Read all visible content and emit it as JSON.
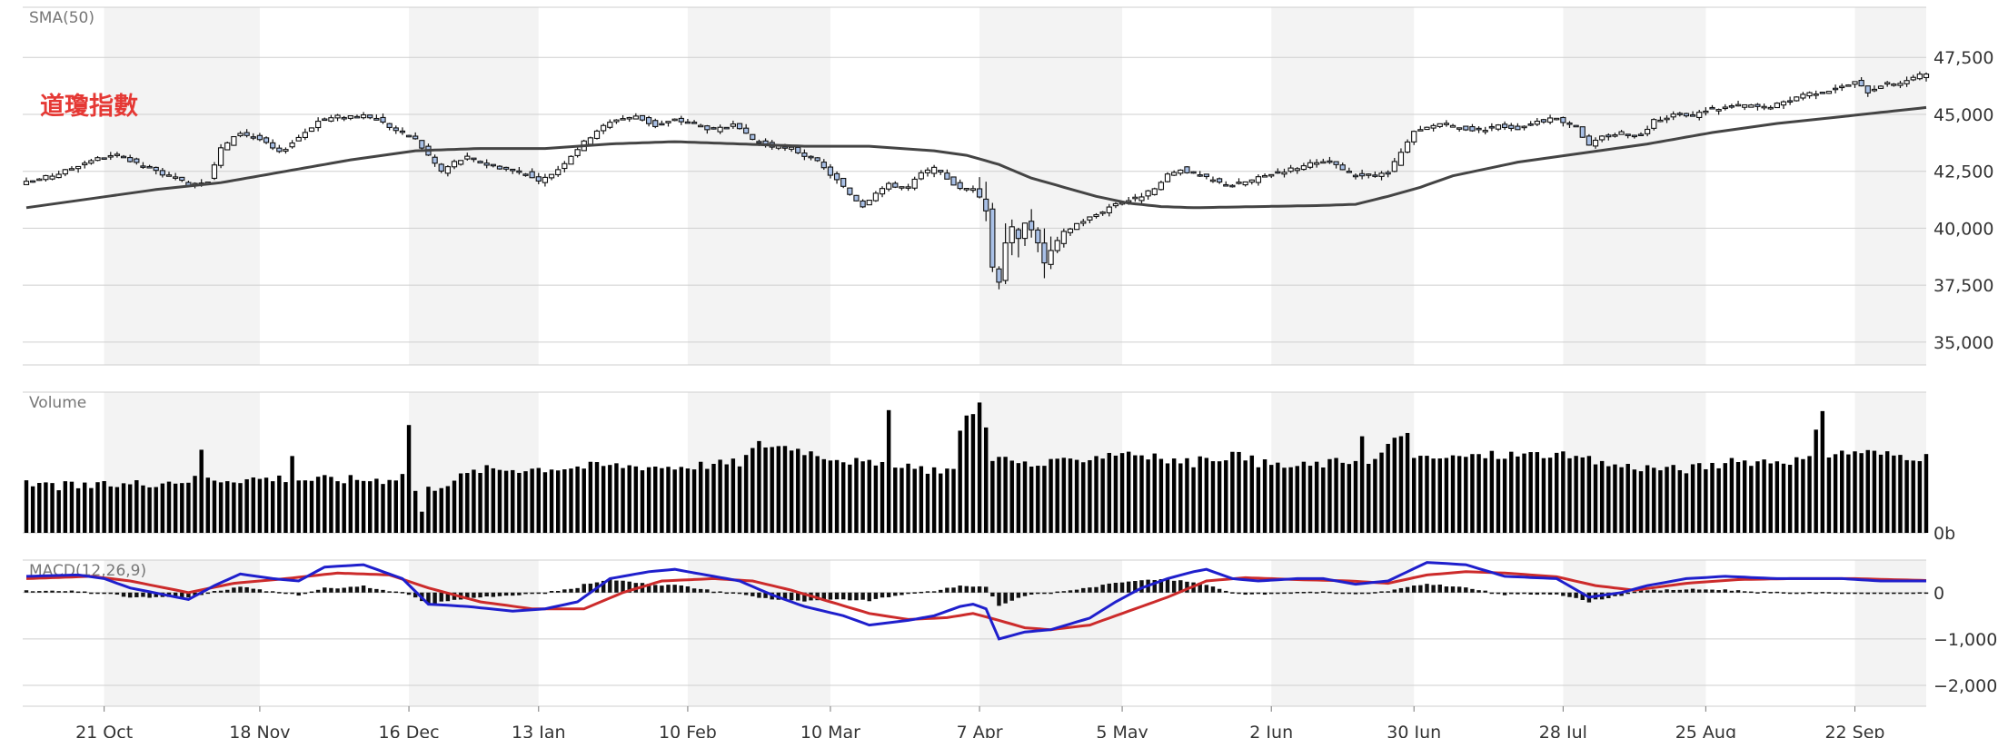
{
  "page": {
    "title": "道瓊指數"
  },
  "colors": {
    "band": "#f3f3f3",
    "grid": "#cfcfcf",
    "candle_up_fill": "#ffffff",
    "candle_down_fill": "#a9c0e6",
    "candle_stroke": "#111111",
    "sma": "#444444",
    "volume": "#000000",
    "macd_line": "#1f1fcc",
    "signal_line": "#cc2b2b",
    "histogram": "#111111",
    "title": "#e53935"
  },
  "chart_data": [
    {
      "type": "candlestick",
      "pane": "price",
      "label": "SMA(50)",
      "title": "道瓊指數",
      "ylim": [
        34000,
        49700
      ],
      "yticks": [
        {
          "value": 35000,
          "label": "35,000"
        },
        {
          "value": 37500,
          "label": "37,500"
        },
        {
          "value": 40000,
          "label": "40,000"
        },
        {
          "value": 42500,
          "label": "42,500"
        },
        {
          "value": 45000,
          "label": "45,000"
        },
        {
          "value": 47500,
          "label": "47,500"
        }
      ],
      "close_anchors": [
        [
          0,
          42000
        ],
        [
          5,
          42400
        ],
        [
          10,
          43000
        ],
        [
          14,
          43200
        ],
        [
          18,
          42700
        ],
        [
          21,
          42400
        ],
        [
          25,
          41950
        ],
        [
          28,
          42100
        ],
        [
          30,
          43500
        ],
        [
          33,
          44200
        ],
        [
          36,
          43900
        ],
        [
          39,
          43300
        ],
        [
          42,
          44000
        ],
        [
          45,
          44700
        ],
        [
          48,
          44900
        ],
        [
          51,
          44950
        ],
        [
          54,
          44800
        ],
        [
          57,
          44300
        ],
        [
          60,
          43900
        ],
        [
          62,
          43200
        ],
        [
          64,
          42500
        ],
        [
          66,
          42900
        ],
        [
          68,
          43100
        ],
        [
          71,
          42800
        ],
        [
          74,
          42600
        ],
        [
          77,
          42400
        ],
        [
          79,
          42000
        ],
        [
          82,
          42600
        ],
        [
          85,
          43500
        ],
        [
          88,
          44300
        ],
        [
          91,
          44800
        ],
        [
          94,
          44900
        ],
        [
          97,
          44500
        ],
        [
          100,
          44750
        ],
        [
          103,
          44600
        ],
        [
          106,
          44300
        ],
        [
          109,
          44500
        ],
        [
          112,
          43900
        ],
        [
          115,
          43600
        ],
        [
          118,
          43500
        ],
        [
          120,
          43200
        ],
        [
          122,
          42900
        ],
        [
          125,
          42100
        ],
        [
          127,
          41500
        ],
        [
          129,
          41000
        ],
        [
          131,
          41600
        ],
        [
          133,
          41900
        ],
        [
          136,
          41800
        ],
        [
          138,
          42400
        ],
        [
          140,
          42600
        ],
        [
          142,
          42200
        ],
        [
          144,
          41700
        ],
        [
          146,
          41800
        ],
        [
          148,
          40800
        ],
        [
          149,
          38300
        ],
        [
          150,
          37700
        ],
        [
          151,
          39400
        ],
        [
          152,
          40000
        ],
        [
          153,
          39500
        ],
        [
          154,
          40300
        ],
        [
          155,
          40000
        ],
        [
          156,
          39300
        ],
        [
          157,
          38500
        ],
        [
          158,
          39000
        ],
        [
          160,
          39800
        ],
        [
          162,
          40200
        ],
        [
          165,
          40600
        ],
        [
          168,
          41100
        ],
        [
          171,
          41300
        ],
        [
          174,
          41700
        ],
        [
          176,
          42300
        ],
        [
          178,
          42600
        ],
        [
          181,
          42300
        ],
        [
          184,
          42000
        ],
        [
          186,
          41900
        ],
        [
          189,
          42100
        ],
        [
          192,
          42400
        ],
        [
          195,
          42600
        ],
        [
          198,
          42800
        ],
        [
          201,
          42900
        ],
        [
          204,
          42400
        ],
        [
          207,
          42300
        ],
        [
          210,
          42400
        ],
        [
          212,
          43300
        ],
        [
          214,
          44200
        ],
        [
          216,
          44400
        ],
        [
          218,
          44600
        ],
        [
          221,
          44400
        ],
        [
          224,
          44300
        ],
        [
          227,
          44500
        ],
        [
          230,
          44400
        ],
        [
          233,
          44700
        ],
        [
          236,
          44800
        ],
        [
          239,
          44500
        ],
        [
          241,
          43600
        ],
        [
          243,
          44000
        ],
        [
          246,
          44200
        ],
        [
          249,
          44100
        ],
        [
          251,
          44700
        ],
        [
          254,
          45000
        ],
        [
          257,
          44900
        ],
        [
          259,
          45200
        ],
        [
          262,
          45300
        ],
        [
          265,
          45400
        ],
        [
          268,
          45300
        ],
        [
          271,
          45500
        ],
        [
          274,
          45900
        ],
        [
          277,
          46000
        ],
        [
          280,
          46200
        ],
        [
          282,
          46400
        ],
        [
          284,
          46000
        ],
        [
          286,
          46300
        ],
        [
          289,
          46400
        ],
        [
          291,
          46600
        ],
        [
          293,
          46800
        ]
      ],
      "sma_anchors": [
        [
          0,
          40900
        ],
        [
          10,
          41300
        ],
        [
          20,
          41700
        ],
        [
          30,
          42000
        ],
        [
          40,
          42500
        ],
        [
          50,
          43000
        ],
        [
          60,
          43400
        ],
        [
          70,
          43500
        ],
        [
          80,
          43500
        ],
        [
          90,
          43700
        ],
        [
          100,
          43800
        ],
        [
          110,
          43700
        ],
        [
          120,
          43600
        ],
        [
          130,
          43600
        ],
        [
          140,
          43400
        ],
        [
          145,
          43200
        ],
        [
          150,
          42800
        ],
        [
          155,
          42200
        ],
        [
          160,
          41800
        ],
        [
          165,
          41400
        ],
        [
          170,
          41100
        ],
        [
          175,
          40950
        ],
        [
          180,
          40900
        ],
        [
          190,
          40950
        ],
        [
          200,
          41000
        ],
        [
          205,
          41050
        ],
        [
          210,
          41400
        ],
        [
          215,
          41800
        ],
        [
          220,
          42300
        ],
        [
          230,
          42900
        ],
        [
          240,
          43300
        ],
        [
          250,
          43700
        ],
        [
          260,
          44200
        ],
        [
          270,
          44600
        ],
        [
          280,
          44900
        ],
        [
          293,
          45300
        ]
      ]
    },
    {
      "type": "bar",
      "pane": "volume",
      "label": "Volume",
      "ylim": [
        0,
        1000
      ],
      "yticks": [
        {
          "value": 0,
          "label": "0b"
        }
      ],
      "value_anchors": [
        [
          0,
          340
        ],
        [
          10,
          330
        ],
        [
          20,
          360
        ],
        [
          26,
          380
        ],
        [
          27,
          600
        ],
        [
          28,
          380
        ],
        [
          40,
          390
        ],
        [
          41,
          560
        ],
        [
          42,
          380
        ],
        [
          55,
          380
        ],
        [
          58,
          410
        ],
        [
          59,
          780
        ],
        [
          60,
          300
        ],
        [
          61,
          150
        ],
        [
          62,
          310
        ],
        [
          70,
          450
        ],
        [
          80,
          460
        ],
        [
          90,
          480
        ],
        [
          100,
          470
        ],
        [
          110,
          500
        ],
        [
          113,
          630
        ],
        [
          118,
          610
        ],
        [
          122,
          560
        ],
        [
          132,
          470
        ],
        [
          133,
          900
        ],
        [
          134,
          460
        ],
        [
          143,
          450
        ],
        [
          144,
          700
        ],
        [
          145,
          860
        ],
        [
          146,
          840
        ],
        [
          147,
          920
        ],
        [
          148,
          780
        ],
        [
          149,
          540
        ],
        [
          155,
          480
        ],
        [
          160,
          500
        ],
        [
          165,
          550
        ],
        [
          170,
          580
        ],
        [
          175,
          520
        ],
        [
          180,
          500
        ],
        [
          186,
          560
        ],
        [
          190,
          500
        ],
        [
          195,
          470
        ],
        [
          198,
          480
        ],
        [
          205,
          520
        ],
        [
          206,
          720
        ],
        [
          207,
          480
        ],
        [
          213,
          740
        ],
        [
          214,
          520
        ],
        [
          225,
          550
        ],
        [
          235,
          560
        ],
        [
          245,
          480
        ],
        [
          255,
          450
        ],
        [
          265,
          510
        ],
        [
          275,
          520
        ],
        [
          277,
          880
        ],
        [
          278,
          560
        ],
        [
          283,
          580
        ],
        [
          286,
          560
        ],
        [
          293,
          540
        ]
      ]
    },
    {
      "type": "line",
      "pane": "macd",
      "label": "MACD(12,26,9)",
      "ylim": [
        -2450,
        700
      ],
      "yticks": [
        {
          "value": 0,
          "label": "0"
        },
        {
          "value": -1000,
          "label": "−1,000"
        },
        {
          "value": -2000,
          "label": "−2,000"
        }
      ],
      "macd_anchors": [
        [
          0,
          350
        ],
        [
          8,
          380
        ],
        [
          12,
          300
        ],
        [
          16,
          100
        ],
        [
          25,
          -150
        ],
        [
          29,
          150
        ],
        [
          33,
          400
        ],
        [
          38,
          300
        ],
        [
          42,
          250
        ],
        [
          46,
          550
        ],
        [
          52,
          600
        ],
        [
          58,
          300
        ],
        [
          62,
          -250
        ],
        [
          68,
          -300
        ],
        [
          75,
          -400
        ],
        [
          80,
          -350
        ],
        [
          85,
          -200
        ],
        [
          90,
          300
        ],
        [
          96,
          450
        ],
        [
          100,
          500
        ],
        [
          104,
          400
        ],
        [
          110,
          250
        ],
        [
          115,
          -50
        ],
        [
          120,
          -300
        ],
        [
          126,
          -500
        ],
        [
          130,
          -700
        ],
        [
          136,
          -600
        ],
        [
          140,
          -500
        ],
        [
          144,
          -300
        ],
        [
          146,
          -250
        ],
        [
          148,
          -350
        ],
        [
          150,
          -1000
        ],
        [
          154,
          -850
        ],
        [
          158,
          -800
        ],
        [
          164,
          -550
        ],
        [
          168,
          -200
        ],
        [
          172,
          100
        ],
        [
          176,
          300
        ],
        [
          180,
          450
        ],
        [
          182,
          500
        ],
        [
          186,
          300
        ],
        [
          190,
          250
        ],
        [
          196,
          300
        ],
        [
          200,
          300
        ],
        [
          205,
          180
        ],
        [
          210,
          250
        ],
        [
          216,
          650
        ],
        [
          222,
          600
        ],
        [
          228,
          350
        ],
        [
          236,
          300
        ],
        [
          241,
          -100
        ],
        [
          246,
          0
        ],
        [
          250,
          150
        ],
        [
          256,
          300
        ],
        [
          262,
          350
        ],
        [
          270,
          300
        ],
        [
          280,
          300
        ],
        [
          286,
          250
        ],
        [
          293,
          250
        ]
      ],
      "signal_anchors": [
        [
          0,
          300
        ],
        [
          10,
          350
        ],
        [
          16,
          250
        ],
        [
          25,
          0
        ],
        [
          32,
          200
        ],
        [
          40,
          300
        ],
        [
          48,
          420
        ],
        [
          56,
          380
        ],
        [
          62,
          100
        ],
        [
          70,
          -200
        ],
        [
          78,
          -350
        ],
        [
          86,
          -350
        ],
        [
          92,
          0
        ],
        [
          98,
          250
        ],
        [
          106,
          300
        ],
        [
          112,
          250
        ],
        [
          118,
          50
        ],
        [
          124,
          -200
        ],
        [
          130,
          -450
        ],
        [
          136,
          -580
        ],
        [
          142,
          -540
        ],
        [
          146,
          -450
        ],
        [
          150,
          -600
        ],
        [
          154,
          -760
        ],
        [
          158,
          -800
        ],
        [
          164,
          -700
        ],
        [
          170,
          -400
        ],
        [
          176,
          -100
        ],
        [
          182,
          250
        ],
        [
          188,
          320
        ],
        [
          196,
          280
        ],
        [
          204,
          250
        ],
        [
          210,
          200
        ],
        [
          216,
          380
        ],
        [
          222,
          450
        ],
        [
          228,
          420
        ],
        [
          236,
          340
        ],
        [
          242,
          150
        ],
        [
          248,
          50
        ],
        [
          256,
          200
        ],
        [
          264,
          280
        ],
        [
          272,
          300
        ],
        [
          282,
          300
        ],
        [
          293,
          260
        ]
      ]
    }
  ],
  "x_axis": {
    "count": 294,
    "ticks": [
      {
        "index": 12,
        "label": "21 Oct"
      },
      {
        "index": 36,
        "label": "18 Nov"
      },
      {
        "index": 59,
        "label": "16 Dec"
      },
      {
        "index": 79,
        "label": "13 Jan"
      },
      {
        "index": 102,
        "label": "10 Feb"
      },
      {
        "index": 124,
        "label": "10 Mar"
      },
      {
        "index": 147,
        "label": "7 Apr"
      },
      {
        "index": 169,
        "label": "5 May"
      },
      {
        "index": 192,
        "label": "2 Jun"
      },
      {
        "index": 214,
        "label": "30 Jun"
      },
      {
        "index": 237,
        "label": "28 Jul"
      },
      {
        "index": 259,
        "label": "25 Aug"
      },
      {
        "index": 282,
        "label": "22 Sep"
      }
    ]
  }
}
